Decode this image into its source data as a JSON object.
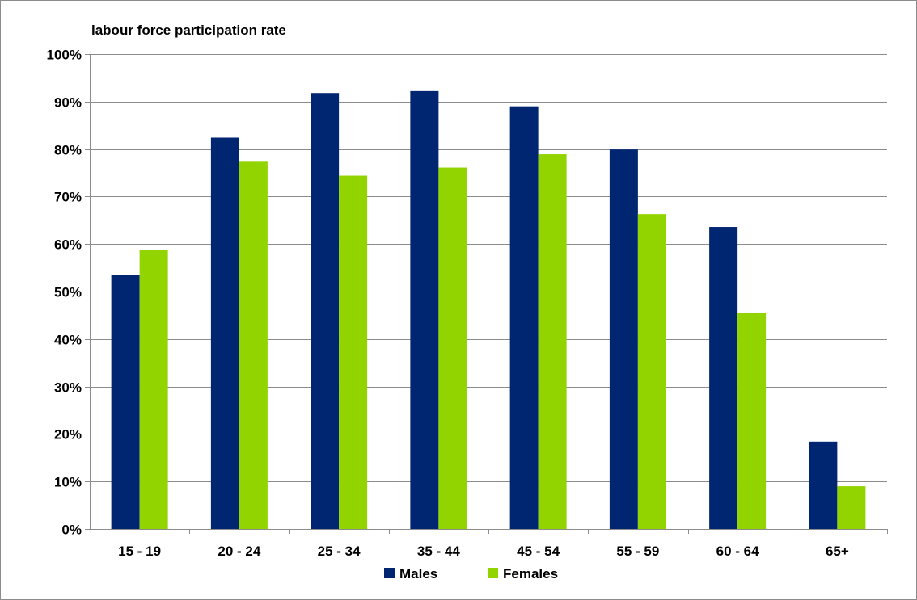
{
  "chart_data": {
    "type": "bar",
    "title": "",
    "xlabel": "",
    "ylabel": "labour force participation rate",
    "ylim": [
      0,
      100
    ],
    "y_ticks": [
      "0%",
      "10%",
      "20%",
      "30%",
      "40%",
      "50%",
      "60%",
      "70%",
      "80%",
      "90%",
      "100%"
    ],
    "categories": [
      "15 - 19",
      "20 - 24",
      "25 - 34",
      "35 - 44",
      "45 - 54",
      "55 - 59",
      "60 - 64",
      "65+"
    ],
    "series": [
      {
        "name": "Males",
        "color": "#002672",
        "values": [
          53.5,
          82.4,
          91.8,
          92.2,
          89.0,
          79.9,
          63.6,
          18.4
        ]
      },
      {
        "name": "Females",
        "color": "#92d400",
        "values": [
          58.7,
          77.5,
          74.4,
          76.1,
          78.9,
          66.3,
          45.5,
          9.0
        ]
      }
    ],
    "grid": true,
    "legend_position": "bottom"
  }
}
